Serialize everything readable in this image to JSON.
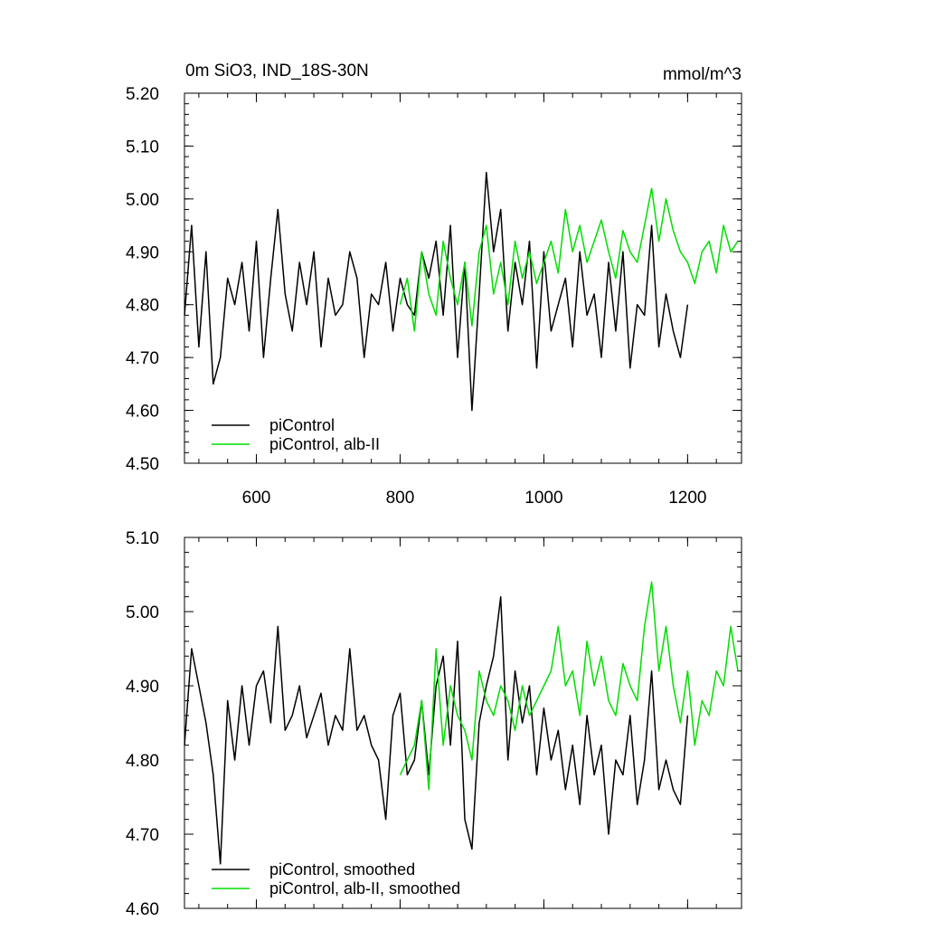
{
  "chart_data": [
    {
      "type": "line",
      "title": "0m SiO3, IND_18S-30N",
      "units": "mmol/m^3",
      "xlim": [
        500,
        1275
      ],
      "ylim": [
        4.5,
        5.2
      ],
      "xticks": [
        600,
        800,
        1000,
        1200
      ],
      "xtick_labels": [
        "600",
        "800",
        "1000",
        "1200"
      ],
      "yticks": [
        4.5,
        4.6,
        4.7,
        4.8,
        4.9,
        5.0,
        5.1,
        5.2
      ],
      "ytick_labels": [
        "4.50",
        "4.60",
        "4.70",
        "4.80",
        "4.90",
        "5.00",
        "5.10",
        "5.20"
      ],
      "grid": false,
      "legend_position": "bottom-left",
      "series": [
        {
          "name": "piControl",
          "color": "#000000",
          "x": [
            500,
            510,
            520,
            530,
            540,
            550,
            560,
            570,
            580,
            590,
            600,
            610,
            620,
            630,
            640,
            650,
            660,
            670,
            680,
            690,
            700,
            710,
            720,
            730,
            740,
            750,
            760,
            770,
            780,
            790,
            800,
            810,
            820,
            830,
            840,
            850,
            860,
            870,
            880,
            890,
            900,
            910,
            920,
            930,
            940,
            950,
            960,
            970,
            980,
            990,
            1000,
            1010,
            1020,
            1030,
            1040,
            1050,
            1060,
            1070,
            1080,
            1090,
            1100,
            1110,
            1120,
            1130,
            1140,
            1150,
            1160,
            1170,
            1180,
            1190,
            1200
          ],
          "y": [
            4.78,
            4.95,
            4.72,
            4.9,
            4.65,
            4.7,
            4.85,
            4.8,
            4.88,
            4.75,
            4.92,
            4.7,
            4.85,
            4.98,
            4.82,
            4.75,
            4.88,
            4.8,
            4.9,
            4.72,
            4.85,
            4.78,
            4.8,
            4.9,
            4.85,
            4.7,
            4.82,
            4.8,
            4.88,
            4.75,
            4.85,
            4.8,
            4.78,
            4.9,
            4.85,
            4.92,
            4.78,
            4.95,
            4.7,
            4.88,
            4.6,
            4.82,
            5.05,
            4.9,
            4.98,
            4.75,
            4.88,
            4.8,
            4.92,
            4.68,
            4.9,
            4.75,
            4.8,
            4.85,
            4.72,
            4.9,
            4.78,
            4.82,
            4.7,
            4.88,
            4.75,
            4.9,
            4.68,
            4.8,
            4.78,
            4.95,
            4.72,
            4.82,
            4.75,
            4.7,
            4.8
          ]
        },
        {
          "name": "piControl, alb-II",
          "color": "#00dd00",
          "x": [
            800,
            810,
            820,
            830,
            840,
            850,
            860,
            870,
            880,
            890,
            900,
            910,
            920,
            930,
            940,
            950,
            960,
            970,
            980,
            990,
            1000,
            1010,
            1020,
            1030,
            1040,
            1050,
            1060,
            1070,
            1080,
            1090,
            1100,
            1110,
            1120,
            1130,
            1140,
            1150,
            1160,
            1170,
            1180,
            1190,
            1200,
            1210,
            1220,
            1230,
            1240,
            1250,
            1260,
            1270
          ],
          "y": [
            4.8,
            4.85,
            4.75,
            4.9,
            4.82,
            4.78,
            4.92,
            4.85,
            4.8,
            4.88,
            4.76,
            4.9,
            4.95,
            4.82,
            4.88,
            4.8,
            4.92,
            4.85,
            4.9,
            4.84,
            4.88,
            4.92,
            4.86,
            4.98,
            4.9,
            4.95,
            4.88,
            4.92,
            4.96,
            4.9,
            4.85,
            4.94,
            4.9,
            4.88,
            4.95,
            5.02,
            4.92,
            5.0,
            4.94,
            4.9,
            4.88,
            4.84,
            4.9,
            4.92,
            4.86,
            4.95,
            4.9,
            4.92
          ]
        }
      ]
    },
    {
      "type": "line",
      "xlim": [
        500,
        1275
      ],
      "ylim": [
        4.6,
        5.1
      ],
      "xticks": [
        600,
        800,
        1000,
        1200
      ],
      "yticks": [
        4.6,
        4.7,
        4.8,
        4.9,
        5.0,
        5.1
      ],
      "ytick_labels": [
        "4.60",
        "4.70",
        "4.80",
        "4.90",
        "5.00",
        "5.10"
      ],
      "grid": false,
      "legend_position": "bottom-left",
      "series": [
        {
          "name": "piControl, smoothed",
          "color": "#000000",
          "x": [
            500,
            510,
            520,
            530,
            540,
            550,
            560,
            570,
            580,
            590,
            600,
            610,
            620,
            630,
            640,
            650,
            660,
            670,
            680,
            690,
            700,
            710,
            720,
            730,
            740,
            750,
            760,
            770,
            780,
            790,
            800,
            810,
            820,
            830,
            840,
            850,
            860,
            870,
            880,
            890,
            900,
            910,
            920,
            930,
            940,
            950,
            960,
            970,
            980,
            990,
            1000,
            1010,
            1020,
            1030,
            1040,
            1050,
            1060,
            1070,
            1080,
            1090,
            1100,
            1110,
            1120,
            1130,
            1140,
            1150,
            1160,
            1170,
            1180,
            1190,
            1200
          ],
          "y": [
            4.82,
            4.95,
            4.9,
            4.85,
            4.78,
            4.66,
            4.88,
            4.8,
            4.9,
            4.82,
            4.9,
            4.92,
            4.85,
            4.98,
            4.84,
            4.86,
            4.9,
            4.83,
            4.86,
            4.89,
            4.82,
            4.86,
            4.84,
            4.95,
            4.84,
            4.86,
            4.82,
            4.8,
            4.72,
            4.86,
            4.89,
            4.78,
            4.8,
            4.88,
            4.78,
            4.9,
            4.94,
            4.82,
            4.96,
            4.72,
            4.68,
            4.85,
            4.9,
            4.94,
            5.02,
            4.8,
            4.92,
            4.85,
            4.9,
            4.78,
            4.87,
            4.8,
            4.84,
            4.76,
            4.82,
            4.74,
            4.86,
            4.78,
            4.82,
            4.7,
            4.8,
            4.78,
            4.86,
            4.74,
            4.8,
            4.92,
            4.76,
            4.8,
            4.76,
            4.74,
            4.86
          ]
        },
        {
          "name": "piControl, alb-II, smoothed",
          "color": "#00dd00",
          "x": [
            800,
            810,
            820,
            830,
            840,
            850,
            860,
            870,
            880,
            890,
            900,
            910,
            920,
            930,
            940,
            950,
            960,
            970,
            980,
            990,
            1000,
            1010,
            1020,
            1030,
            1040,
            1050,
            1060,
            1070,
            1080,
            1090,
            1100,
            1110,
            1120,
            1130,
            1140,
            1150,
            1160,
            1170,
            1180,
            1190,
            1200,
            1210,
            1220,
            1230,
            1240,
            1250,
            1260,
            1270
          ],
          "y": [
            4.78,
            4.8,
            4.82,
            4.88,
            4.76,
            4.95,
            4.82,
            4.9,
            4.86,
            4.84,
            4.8,
            4.92,
            4.88,
            4.86,
            4.9,
            4.88,
            4.84,
            4.9,
            4.86,
            4.88,
            4.9,
            4.92,
            4.98,
            4.9,
            4.92,
            4.86,
            4.96,
            4.9,
            4.94,
            4.88,
            4.86,
            4.93,
            4.9,
            4.88,
            4.98,
            5.04,
            4.92,
            4.98,
            4.9,
            4.85,
            4.92,
            4.82,
            4.88,
            4.86,
            4.92,
            4.9,
            4.98,
            4.92
          ]
        }
      ]
    }
  ]
}
